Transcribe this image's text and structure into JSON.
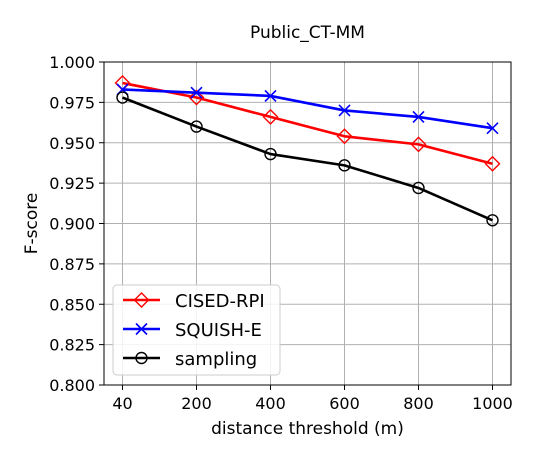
{
  "chart_data": {
    "type": "line",
    "title": "Public_CT-MM",
    "xlabel": "distance threshold (m)",
    "ylabel": "F-score",
    "categories": [
      "40",
      "200",
      "400",
      "600",
      "800",
      "1000"
    ],
    "yticks": [
      "0.800",
      "0.825",
      "0.850",
      "0.875",
      "0.900",
      "0.925",
      "0.950",
      "0.975",
      "1.000"
    ],
    "ylim": [
      0.8,
      1.0
    ],
    "grid": true,
    "legend_position": "lower-left",
    "series": [
      {
        "name": "CISED-RPI",
        "color": "#ff0000",
        "marker": "diamond",
        "values": [
          0.987,
          0.978,
          0.966,
          0.954,
          0.949,
          0.937
        ]
      },
      {
        "name": "SQUISH-E",
        "color": "#0000ff",
        "marker": "x",
        "values": [
          0.983,
          0.981,
          0.979,
          0.97,
          0.966,
          0.959
        ]
      },
      {
        "name": "sampling",
        "color": "#000000",
        "marker": "circle",
        "values": [
          0.978,
          0.96,
          0.943,
          0.936,
          0.922,
          0.902
        ]
      }
    ]
  }
}
